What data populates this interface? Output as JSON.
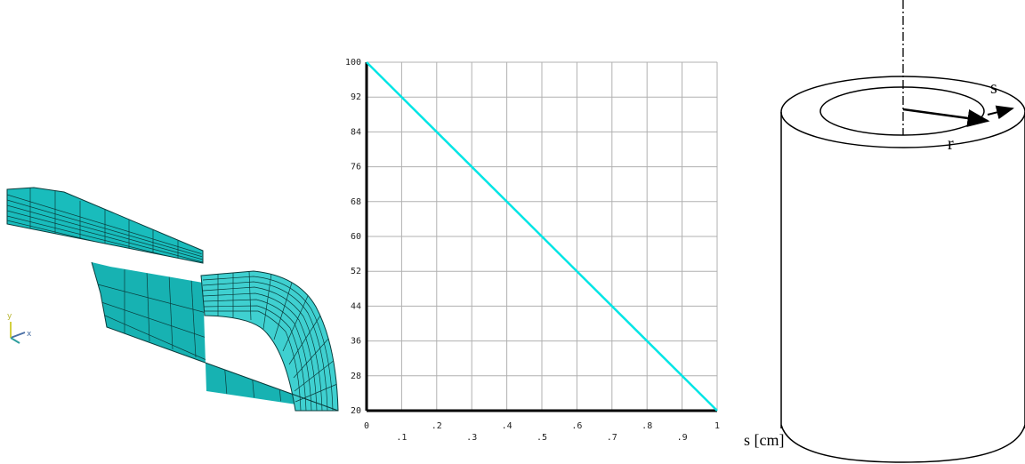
{
  "mesh": {
    "triad_x_label": "x",
    "triad_y_label": "y",
    "colors": {
      "face": "#19bcbc",
      "face_light": "#3fd0d0",
      "face_dark": "#0f9c9c",
      "line": "#0a3d3d",
      "triad_x": "#4a6fa5",
      "triad_y": "#d4d040"
    }
  },
  "chart_data": {
    "type": "line",
    "title": "",
    "xlabel": "s [cm]",
    "ylabel": "",
    "xlim": [
      0,
      1
    ],
    "ylim": [
      20,
      100
    ],
    "x_ticks_row1": [
      "0",
      ".2",
      ".4",
      ".6",
      ".8",
      "1"
    ],
    "x_ticks_row2": [
      ".1",
      ".3",
      ".5",
      ".7",
      ".9"
    ],
    "y_ticks": [
      "20",
      "28",
      "36",
      "44",
      "52",
      "60",
      "68",
      "76",
      "84",
      "92",
      "100"
    ],
    "grid": true,
    "series": [
      {
        "x": [
          0,
          1
        ],
        "y": [
          100,
          20
        ],
        "color": "#00e5e5"
      }
    ]
  },
  "cylinder": {
    "label_s": "s",
    "label_r": "r"
  }
}
